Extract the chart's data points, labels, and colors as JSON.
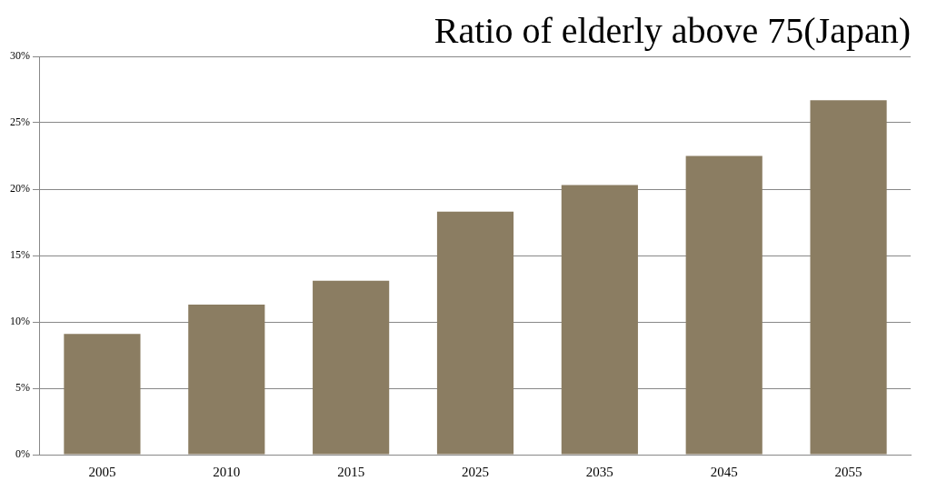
{
  "chart_data": {
    "type": "bar",
    "title": "Ratio of elderly above 75(Japan)",
    "categories": [
      "2005",
      "2010",
      "2015",
      "2025",
      "2035",
      "2045",
      "2055"
    ],
    "values": [
      9.1,
      11.3,
      13.1,
      18.3,
      20.3,
      22.5,
      26.7
    ],
    "color": "#8b7d62",
    "ylim": [
      0,
      30
    ],
    "yticks": [
      {
        "value": 0,
        "label": "0%"
      },
      {
        "value": 5,
        "label": "5%"
      },
      {
        "value": 10,
        "label": "10%"
      },
      {
        "value": 15,
        "label": "15%"
      },
      {
        "value": 20,
        "label": "20%"
      },
      {
        "value": 25,
        "label": "25%"
      },
      {
        "value": 30,
        "label": "30%"
      }
    ],
    "grid": "y"
  }
}
